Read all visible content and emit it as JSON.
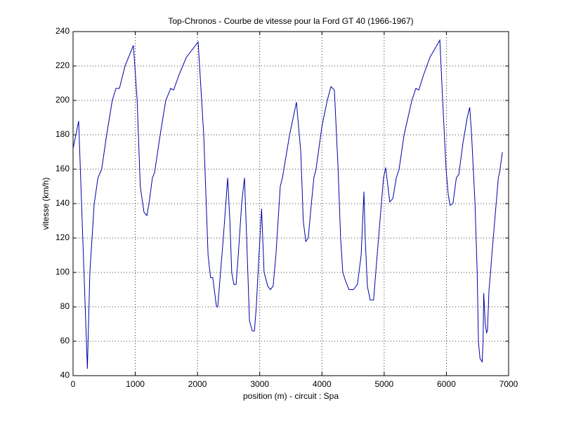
{
  "chart_data": {
    "type": "line",
    "title": "Top-Chronos - Courbe de vitesse pour la Ford GT 40 (1966-1967)",
    "xlabel": "position (m) - circuit : Spa",
    "ylabel": "vitesse (km/h)",
    "x": [
      0,
      90,
      230,
      270,
      340,
      400,
      460,
      540,
      630,
      690,
      745,
      835,
      970,
      1030,
      1080,
      1140,
      1185,
      1220,
      1275,
      1310,
      1400,
      1490,
      1570,
      1615,
      1705,
      1820,
      2010,
      2100,
      2170,
      2210,
      2245,
      2305,
      2325,
      2370,
      2415,
      2485,
      2520,
      2550,
      2585,
      2620,
      2655,
      2710,
      2755,
      2790,
      2835,
      2880,
      2915,
      2945,
      2980,
      3030,
      3070,
      3130,
      3170,
      3215,
      3260,
      3330,
      3365,
      3480,
      3590,
      3660,
      3700,
      3740,
      3780,
      3830,
      3870,
      3905,
      4000,
      4085,
      4145,
      4200,
      4260,
      4300,
      4335,
      4380,
      4435,
      4505,
      4570,
      4630,
      4675,
      4695,
      4730,
      4775,
      4830,
      4865,
      4955,
      4990,
      5025,
      5060,
      5090,
      5140,
      5195,
      5240,
      5320,
      5445,
      5510,
      5555,
      5635,
      5735,
      5895,
      5940,
      5995,
      6030,
      6060,
      6105,
      6160,
      6200,
      6265,
      6335,
      6375,
      6405,
      6460,
      6495,
      6515,
      6540,
      6575,
      6590,
      6600,
      6625,
      6645,
      6660,
      6685,
      6710,
      6730,
      6800,
      6835,
      6855,
      6900
    ],
    "series": [
      {
        "name": "vitesse",
        "color": "#0000a8",
        "values": [
          172,
          188,
          44,
          100,
          140,
          155,
          160,
          180,
          200,
          207,
          207,
          220,
          232,
          200,
          150,
          135,
          133,
          140,
          155,
          158,
          180,
          200,
          207,
          206,
          215,
          225,
          234,
          180,
          110,
          97,
          97,
          80,
          80,
          100,
          120,
          155,
          130,
          100,
          93,
          93,
          110,
          140,
          155,
          120,
          72,
          66,
          66,
          80,
          105,
          137,
          100,
          92,
          90,
          92,
          110,
          150,
          155,
          180,
          199,
          170,
          130,
          118,
          120,
          140,
          155,
          160,
          185,
          200,
          208,
          206,
          160,
          120,
          100,
          95,
          90,
          90,
          93,
          110,
          147,
          120,
          92,
          84,
          84,
          100,
          140,
          155,
          161,
          150,
          141,
          143,
          155,
          160,
          180,
          200,
          207,
          206,
          215,
          225,
          235,
          200,
          160,
          145,
          139,
          140,
          155,
          157,
          175,
          190,
          196,
          180,
          140,
          100,
          60,
          50,
          48,
          60,
          88,
          70,
          65,
          66,
          90,
          100,
          110,
          140,
          155,
          158,
          170
        ]
      }
    ],
    "xlim": [
      0,
      7000
    ],
    "xticks": [
      0,
      1000,
      2000,
      3000,
      4000,
      5000,
      6000,
      7000
    ],
    "ylim": [
      40,
      240
    ],
    "yticks": [
      40,
      60,
      80,
      100,
      120,
      140,
      160,
      180,
      200,
      220,
      240
    ],
    "grid": true
  }
}
